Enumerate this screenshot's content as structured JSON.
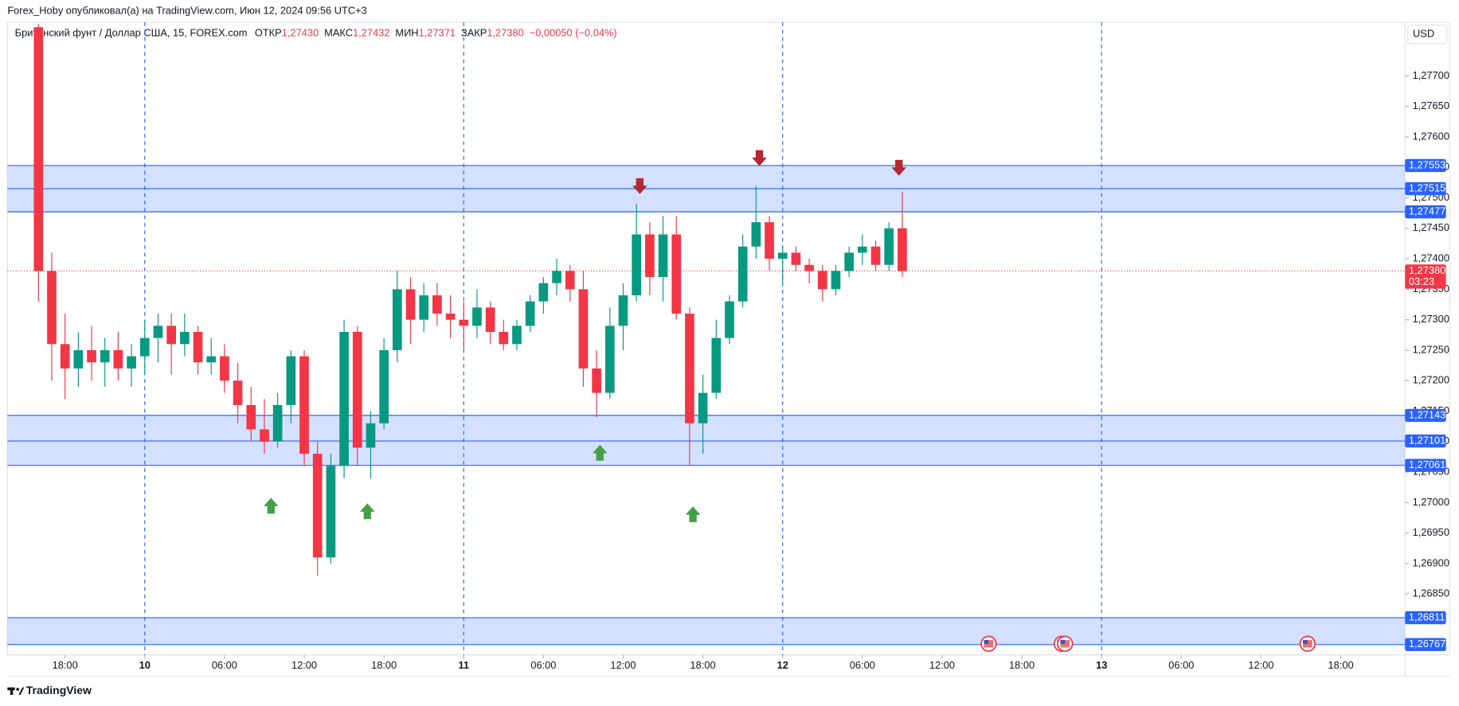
{
  "chart_data": {
    "type": "candlestick",
    "publisher": "Forex_Hoby опубликовал(а) на TradingView.com, Июн 12, 2024 09:56 UTC+3",
    "symbol": "Британский фунт / Доллар США, 15, FOREX.com",
    "ohlc_legend": [
      {
        "label": "ОТКР",
        "value": "1,27430"
      },
      {
        "label": "МАКС",
        "value": "1,27432"
      },
      {
        "label": "МИН",
        "value": "1,27371"
      },
      {
        "label": "ЗАКР",
        "value": "1,27380"
      }
    ],
    "change": "−0,00050 (−0,04%)",
    "currency": "USD",
    "brand": "TradingView",
    "up_color": "#089981",
    "down_color": "#f23645",
    "zone_color": "#2962ff",
    "xlim": [
      "2024-06-09T13:40",
      "2024-06-13T22:50"
    ],
    "xticks": [
      {
        "value": "2024-06-09T18:00",
        "label": "18:00"
      },
      {
        "value": "2024-06-10T00:00",
        "label": "10"
      },
      {
        "value": "2024-06-10T06:00",
        "label": "06:00"
      },
      {
        "value": "2024-06-10T12:00",
        "label": "12:00"
      },
      {
        "value": "2024-06-10T18:00",
        "label": "18:00"
      },
      {
        "value": "2024-06-11T00:00",
        "label": "11"
      },
      {
        "value": "2024-06-11T06:00",
        "label": "06:00"
      },
      {
        "value": "2024-06-11T12:00",
        "label": "12:00"
      },
      {
        "value": "2024-06-11T18:00",
        "label": "18:00"
      },
      {
        "value": "2024-06-12T00:00",
        "label": "12"
      },
      {
        "value": "2024-06-12T06:00",
        "label": "06:00"
      },
      {
        "value": "2024-06-12T12:00",
        "label": "12:00"
      },
      {
        "value": "2024-06-12T18:00",
        "label": "18:00"
      },
      {
        "value": "2024-06-13T00:00",
        "label": "13"
      },
      {
        "value": "2024-06-13T06:00",
        "label": "06:00"
      },
      {
        "value": "2024-06-13T12:00",
        "label": "12:00"
      },
      {
        "value": "2024-06-13T18:00",
        "label": "18:00"
      }
    ],
    "ylim": [
      1.2675,
      1.27788
    ],
    "yticks": [
      {
        "value": 1.2685,
        "label": "1,26850"
      },
      {
        "value": 1.269,
        "label": "1,26900"
      },
      {
        "value": 1.2695,
        "label": "1,26950"
      },
      {
        "value": 1.27,
        "label": "1,27000"
      },
      {
        "value": 1.2705,
        "label": "1,27050"
      },
      {
        "value": 1.271,
        "label": "1,27100"
      },
      {
        "value": 1.2715,
        "label": "1,27150"
      },
      {
        "value": 1.272,
        "label": "1,27200"
      },
      {
        "value": 1.2725,
        "label": "1,27250"
      },
      {
        "value": 1.273,
        "label": "1,27300"
      },
      {
        "value": 1.2735,
        "label": "1,27350"
      },
      {
        "value": 1.274,
        "label": "1,27400"
      },
      {
        "value": 1.2745,
        "label": "1,27450"
      },
      {
        "value": 1.275,
        "label": "1,27500"
      },
      {
        "value": 1.2755,
        "label": "1,27550"
      },
      {
        "value": 1.276,
        "label": "1,27600"
      },
      {
        "value": 1.2765,
        "label": "1,27650"
      },
      {
        "value": 1.277,
        "label": "1,27700"
      }
    ],
    "zones": [
      {
        "levels": [
          {
            "value": 1.27553,
            "label": "1,27553"
          },
          {
            "value": 1.27515,
            "label": "1,27515"
          },
          {
            "value": 1.27477,
            "label": "1,27477"
          }
        ]
      },
      {
        "levels": [
          {
            "value": 1.27143,
            "label": "1,27143"
          },
          {
            "value": 1.27101,
            "label": "1,27101"
          },
          {
            "value": 1.27061,
            "label": "1,27061"
          }
        ]
      },
      {
        "levels": [
          {
            "value": 1.26811,
            "label": "1,26811"
          },
          {
            "value": 1.26767,
            "label": "1,26767"
          }
        ]
      }
    ],
    "last_price": {
      "value": 1.2738,
      "label": "1,27380"
    },
    "countdown": "03:23",
    "markers": [
      {
        "x": "2024-06-10T09:30",
        "y": 1.26994,
        "direction": "up",
        "color": "#43a047"
      },
      {
        "x": "2024-06-10T16:45",
        "y": 1.26985,
        "direction": "up",
        "color": "#43a047"
      },
      {
        "x": "2024-06-11T10:15",
        "y": 1.27081,
        "direction": "up",
        "color": "#43a047"
      },
      {
        "x": "2024-06-11T17:15",
        "y": 1.2698,
        "direction": "up",
        "color": "#43a047"
      },
      {
        "x": "2024-06-11T13:15",
        "y": 1.2752,
        "direction": "down",
        "color": "#b22833"
      },
      {
        "x": "2024-06-11T22:15",
        "y": 1.27566,
        "direction": "down",
        "color": "#b22833"
      },
      {
        "x": "2024-06-12T08:45",
        "y": 1.2755,
        "direction": "down",
        "color": "#b22833"
      }
    ],
    "events": [
      "2024-06-12T15:30",
      "2024-06-12T21:00",
      "2024-06-12T21:15",
      "2024-06-13T15:30"
    ],
    "candles": [
      {
        "x": "2024-06-09T16:00",
        "o": 1.2778,
        "h": 1.27785,
        "l": 1.2733,
        "c": 1.2738
      },
      {
        "x": "2024-06-09T17:00",
        "o": 1.2738,
        "h": 1.2741,
        "l": 1.272,
        "c": 1.2726
      },
      {
        "x": "2024-06-09T18:00",
        "o": 1.2726,
        "h": 1.2731,
        "l": 1.2717,
        "c": 1.2722
      },
      {
        "x": "2024-06-09T19:00",
        "o": 1.2722,
        "h": 1.2728,
        "l": 1.2719,
        "c": 1.2725
      },
      {
        "x": "2024-06-09T20:00",
        "o": 1.2725,
        "h": 1.2729,
        "l": 1.272,
        "c": 1.2723
      },
      {
        "x": "2024-06-09T21:00",
        "o": 1.2723,
        "h": 1.2727,
        "l": 1.2719,
        "c": 1.2725
      },
      {
        "x": "2024-06-09T22:00",
        "o": 1.2725,
        "h": 1.2728,
        "l": 1.272,
        "c": 1.2722
      },
      {
        "x": "2024-06-09T23:00",
        "o": 1.2722,
        "h": 1.2726,
        "l": 1.2719,
        "c": 1.2724
      },
      {
        "x": "2024-06-10T00:00",
        "o": 1.2724,
        "h": 1.273,
        "l": 1.2721,
        "c": 1.2727
      },
      {
        "x": "2024-06-10T01:00",
        "o": 1.2727,
        "h": 1.2731,
        "l": 1.2723,
        "c": 1.2729
      },
      {
        "x": "2024-06-10T02:00",
        "o": 1.2729,
        "h": 1.2731,
        "l": 1.2721,
        "c": 1.2726
      },
      {
        "x": "2024-06-10T03:00",
        "o": 1.2726,
        "h": 1.2731,
        "l": 1.2724,
        "c": 1.2728
      },
      {
        "x": "2024-06-10T04:00",
        "o": 1.2728,
        "h": 1.2729,
        "l": 1.2721,
        "c": 1.2723
      },
      {
        "x": "2024-06-10T05:00",
        "o": 1.2723,
        "h": 1.2727,
        "l": 1.2721,
        "c": 1.2724
      },
      {
        "x": "2024-06-10T06:00",
        "o": 1.2724,
        "h": 1.2726,
        "l": 1.2718,
        "c": 1.272
      },
      {
        "x": "2024-06-10T07:00",
        "o": 1.272,
        "h": 1.2723,
        "l": 1.2713,
        "c": 1.2716
      },
      {
        "x": "2024-06-10T08:00",
        "o": 1.2716,
        "h": 1.2719,
        "l": 1.271,
        "c": 1.2712
      },
      {
        "x": "2024-06-10T09:00",
        "o": 1.2712,
        "h": 1.2717,
        "l": 1.2708,
        "c": 1.271
      },
      {
        "x": "2024-06-10T10:00",
        "o": 1.271,
        "h": 1.2718,
        "l": 1.2709,
        "c": 1.2716
      },
      {
        "x": "2024-06-10T11:00",
        "o": 1.2716,
        "h": 1.2725,
        "l": 1.2713,
        "c": 1.2724
      },
      {
        "x": "2024-06-10T12:00",
        "o": 1.2724,
        "h": 1.2725,
        "l": 1.2706,
        "c": 1.2708
      },
      {
        "x": "2024-06-10T13:00",
        "o": 1.2708,
        "h": 1.271,
        "l": 1.2688,
        "c": 1.2691
      },
      {
        "x": "2024-06-10T14:00",
        "o": 1.2691,
        "h": 1.2708,
        "l": 1.269,
        "c": 1.2706
      },
      {
        "x": "2024-06-10T15:00",
        "o": 1.2706,
        "h": 1.273,
        "l": 1.2704,
        "c": 1.2728
      },
      {
        "x": "2024-06-10T16:00",
        "o": 1.2728,
        "h": 1.2729,
        "l": 1.2706,
        "c": 1.2709
      },
      {
        "x": "2024-06-10T17:00",
        "o": 1.2709,
        "h": 1.2715,
        "l": 1.2704,
        "c": 1.2713
      },
      {
        "x": "2024-06-10T18:00",
        "o": 1.2713,
        "h": 1.2727,
        "l": 1.2712,
        "c": 1.2725
      },
      {
        "x": "2024-06-10T19:00",
        "o": 1.2725,
        "h": 1.2738,
        "l": 1.2723,
        "c": 1.2735
      },
      {
        "x": "2024-06-10T20:00",
        "o": 1.2735,
        "h": 1.2737,
        "l": 1.2726,
        "c": 1.273
      },
      {
        "x": "2024-06-10T21:00",
        "o": 1.273,
        "h": 1.2736,
        "l": 1.2728,
        "c": 1.2734
      },
      {
        "x": "2024-06-10T22:00",
        "o": 1.2734,
        "h": 1.2736,
        "l": 1.2729,
        "c": 1.2731
      },
      {
        "x": "2024-06-10T23:00",
        "o": 1.2731,
        "h": 1.2734,
        "l": 1.2727,
        "c": 1.273
      },
      {
        "x": "2024-06-11T00:00",
        "o": 1.273,
        "h": 1.2733,
        "l": 1.2725,
        "c": 1.2729
      },
      {
        "x": "2024-06-11T01:00",
        "o": 1.2729,
        "h": 1.2735,
        "l": 1.2727,
        "c": 1.2732
      },
      {
        "x": "2024-06-11T02:00",
        "o": 1.2732,
        "h": 1.2733,
        "l": 1.2726,
        "c": 1.2728
      },
      {
        "x": "2024-06-11T03:00",
        "o": 1.2728,
        "h": 1.273,
        "l": 1.2725,
        "c": 1.2726
      },
      {
        "x": "2024-06-11T04:00",
        "o": 1.2726,
        "h": 1.273,
        "l": 1.2725,
        "c": 1.2729
      },
      {
        "x": "2024-06-11T05:00",
        "o": 1.2729,
        "h": 1.2734,
        "l": 1.2728,
        "c": 1.2733
      },
      {
        "x": "2024-06-11T06:00",
        "o": 1.2733,
        "h": 1.2737,
        "l": 1.2731,
        "c": 1.2736
      },
      {
        "x": "2024-06-11T07:00",
        "o": 1.2736,
        "h": 1.274,
        "l": 1.2734,
        "c": 1.2738
      },
      {
        "x": "2024-06-11T08:00",
        "o": 1.2738,
        "h": 1.2739,
        "l": 1.2733,
        "c": 1.2735
      },
      {
        "x": "2024-06-11T09:00",
        "o": 1.2735,
        "h": 1.2738,
        "l": 1.2719,
        "c": 1.2722
      },
      {
        "x": "2024-06-11T10:00",
        "o": 1.2722,
        "h": 1.2725,
        "l": 1.2714,
        "c": 1.2718
      },
      {
        "x": "2024-06-11T11:00",
        "o": 1.2718,
        "h": 1.2732,
        "l": 1.2717,
        "c": 1.2729
      },
      {
        "x": "2024-06-11T12:00",
        "o": 1.2729,
        "h": 1.2736,
        "l": 1.2725,
        "c": 1.2734
      },
      {
        "x": "2024-06-11T13:00",
        "o": 1.2734,
        "h": 1.2749,
        "l": 1.2733,
        "c": 1.2744
      },
      {
        "x": "2024-06-11T14:00",
        "o": 1.2744,
        "h": 1.2746,
        "l": 1.2734,
        "c": 1.2737
      },
      {
        "x": "2024-06-11T15:00",
        "o": 1.2737,
        "h": 1.2747,
        "l": 1.2733,
        "c": 1.2744
      },
      {
        "x": "2024-06-11T16:00",
        "o": 1.2744,
        "h": 1.2747,
        "l": 1.273,
        "c": 1.2731
      },
      {
        "x": "2024-06-11T17:00",
        "o": 1.2731,
        "h": 1.2732,
        "l": 1.2706,
        "c": 1.2713
      },
      {
        "x": "2024-06-11T18:00",
        "o": 1.2713,
        "h": 1.2721,
        "l": 1.2708,
        "c": 1.2718
      },
      {
        "x": "2024-06-11T19:00",
        "o": 1.2718,
        "h": 1.273,
        "l": 1.2717,
        "c": 1.2727
      },
      {
        "x": "2024-06-11T20:00",
        "o": 1.2727,
        "h": 1.2734,
        "l": 1.2726,
        "c": 1.2733
      },
      {
        "x": "2024-06-11T21:00",
        "o": 1.2733,
        "h": 1.2744,
        "l": 1.2732,
        "c": 1.2742
      },
      {
        "x": "2024-06-11T22:00",
        "o": 1.2742,
        "h": 1.2752,
        "l": 1.274,
        "c": 1.2746
      },
      {
        "x": "2024-06-11T23:00",
        "o": 1.2746,
        "h": 1.2747,
        "l": 1.2738,
        "c": 1.274
      },
      {
        "x": "2024-06-12T00:00",
        "o": 1.274,
        "h": 1.2742,
        "l": 1.2736,
        "c": 1.2741
      },
      {
        "x": "2024-06-12T01:00",
        "o": 1.2741,
        "h": 1.2742,
        "l": 1.2738,
        "c": 1.2739
      },
      {
        "x": "2024-06-12T02:00",
        "o": 1.2739,
        "h": 1.274,
        "l": 1.2736,
        "c": 1.2738
      },
      {
        "x": "2024-06-12T03:00",
        "o": 1.2738,
        "h": 1.2739,
        "l": 1.2733,
        "c": 1.2735
      },
      {
        "x": "2024-06-12T04:00",
        "o": 1.2735,
        "h": 1.2739,
        "l": 1.2734,
        "c": 1.2738
      },
      {
        "x": "2024-06-12T05:00",
        "o": 1.2738,
        "h": 1.2742,
        "l": 1.2737,
        "c": 1.2741
      },
      {
        "x": "2024-06-12T06:00",
        "o": 1.2741,
        "h": 1.2744,
        "l": 1.2739,
        "c": 1.2742
      },
      {
        "x": "2024-06-12T07:00",
        "o": 1.2742,
        "h": 1.2743,
        "l": 1.2738,
        "c": 1.2739
      },
      {
        "x": "2024-06-12T08:00",
        "o": 1.2739,
        "h": 1.2746,
        "l": 1.2738,
        "c": 1.2745
      },
      {
        "x": "2024-06-12T09:00",
        "o": 1.2745,
        "h": 1.2751,
        "l": 1.2737,
        "c": 1.2738
      }
    ]
  }
}
